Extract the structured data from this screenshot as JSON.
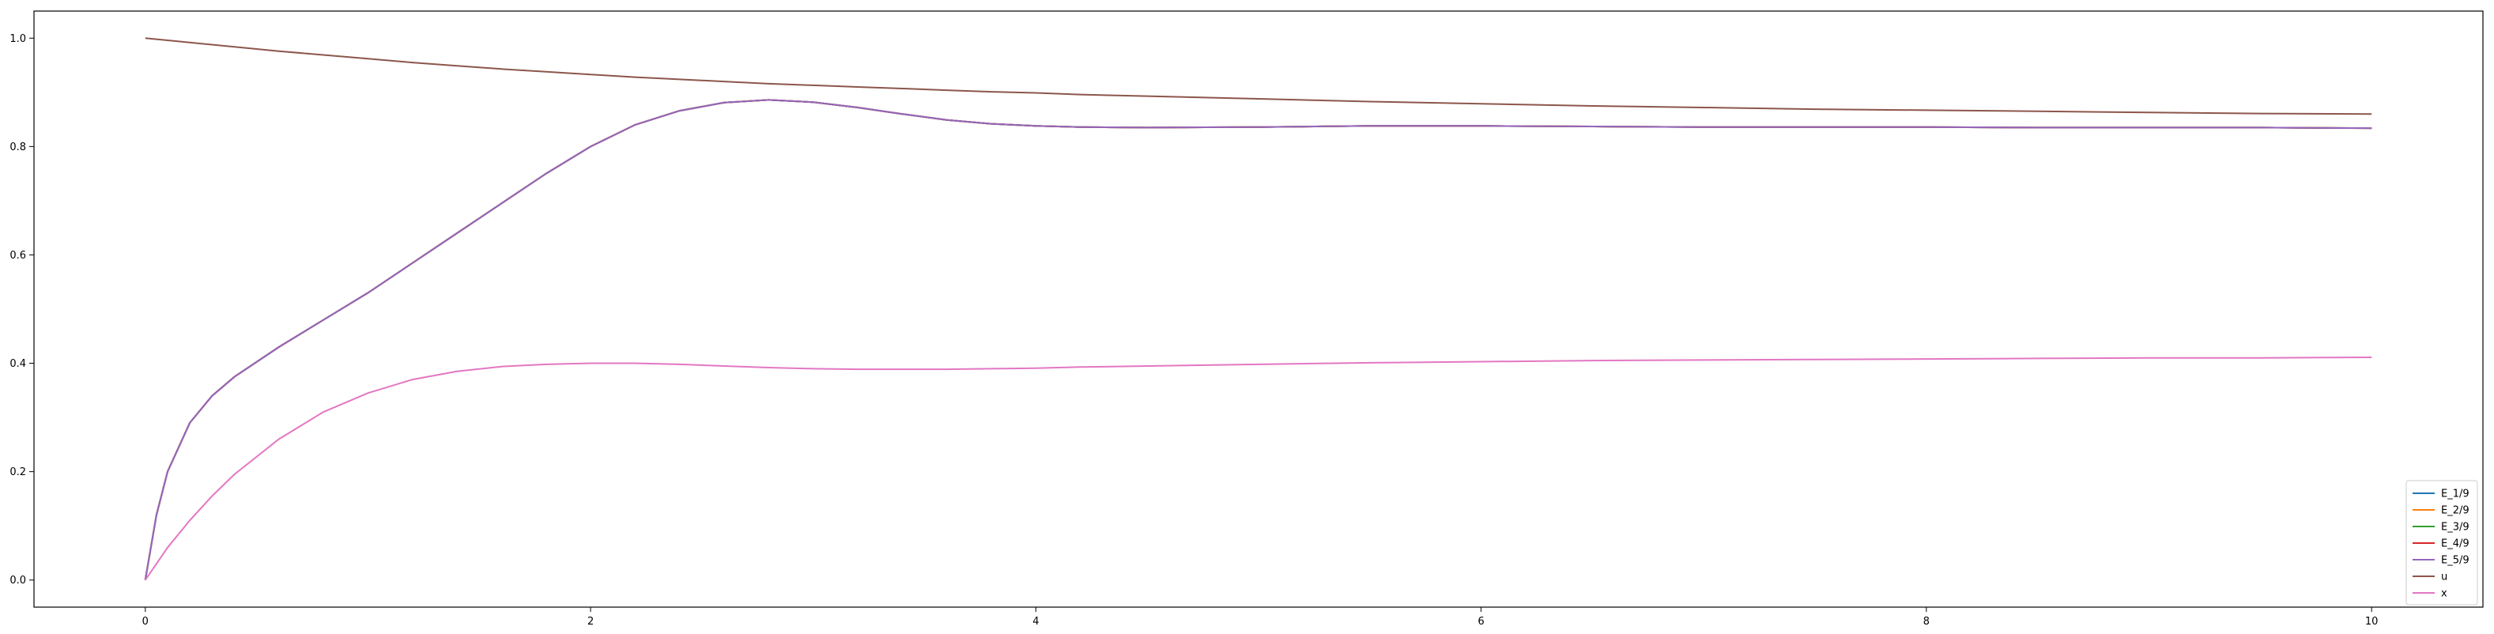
{
  "chart_data": {
    "type": "line",
    "title": "",
    "xlabel": "",
    "ylabel": "",
    "xlim": [
      -0.5,
      10.5
    ],
    "ylim": [
      -0.05,
      1.05
    ],
    "xticks": [
      0,
      2,
      4,
      6,
      8,
      10
    ],
    "yticks": [
      0.0,
      0.2,
      0.4,
      0.6,
      0.8,
      1.0
    ],
    "xtick_labels": [
      "0",
      "2",
      "4",
      "6",
      "8",
      "10"
    ],
    "ytick_labels": [
      "0.0",
      "0.2",
      "0.4",
      "0.6",
      "0.8",
      "1.0"
    ],
    "grid": false,
    "legend_position": "bottom-right",
    "x": [
      0,
      0.05,
      0.1,
      0.2,
      0.3,
      0.4,
      0.6,
      0.8,
      1.0,
      1.2,
      1.4,
      1.6,
      1.8,
      2.0,
      2.2,
      2.4,
      2.6,
      2.8,
      3.0,
      3.2,
      3.4,
      3.6,
      3.8,
      4.0,
      4.2,
      4.5,
      5.0,
      5.5,
      6.0,
      6.5,
      7.0,
      7.5,
      8.0,
      8.5,
      9.0,
      9.5,
      10.0
    ],
    "series": [
      {
        "name": "E_1/9",
        "color": "#1f77b4",
        "values": [
          0.0,
          0.12,
          0.2,
          0.29,
          0.34,
          0.375,
          0.43,
          0.48,
          0.53,
          0.585,
          0.64,
          0.695,
          0.75,
          0.8,
          0.84,
          0.866,
          0.881,
          0.886,
          0.882,
          0.872,
          0.86,
          0.849,
          0.842,
          0.838,
          0.836,
          0.835,
          0.836,
          0.838,
          0.838,
          0.837,
          0.836,
          0.836,
          0.836,
          0.835,
          0.835,
          0.835,
          0.834
        ]
      },
      {
        "name": "E_2/9",
        "color": "#ff7f0e",
        "values": [
          0.0,
          0.12,
          0.2,
          0.29,
          0.34,
          0.375,
          0.43,
          0.48,
          0.53,
          0.585,
          0.64,
          0.695,
          0.75,
          0.8,
          0.84,
          0.866,
          0.881,
          0.886,
          0.882,
          0.872,
          0.86,
          0.849,
          0.842,
          0.838,
          0.836,
          0.835,
          0.836,
          0.838,
          0.838,
          0.837,
          0.836,
          0.836,
          0.836,
          0.835,
          0.835,
          0.835,
          0.834
        ]
      },
      {
        "name": "E_3/9",
        "color": "#2ca02c",
        "values": [
          0.0,
          0.12,
          0.2,
          0.29,
          0.34,
          0.375,
          0.43,
          0.48,
          0.53,
          0.585,
          0.64,
          0.695,
          0.75,
          0.8,
          0.84,
          0.866,
          0.881,
          0.886,
          0.882,
          0.872,
          0.86,
          0.849,
          0.842,
          0.838,
          0.836,
          0.835,
          0.836,
          0.838,
          0.838,
          0.837,
          0.836,
          0.836,
          0.836,
          0.835,
          0.835,
          0.835,
          0.834
        ]
      },
      {
        "name": "E_4/9",
        "color": "#d62728",
        "values": [
          0.0,
          0.12,
          0.2,
          0.29,
          0.34,
          0.375,
          0.43,
          0.48,
          0.53,
          0.585,
          0.64,
          0.695,
          0.75,
          0.8,
          0.84,
          0.866,
          0.881,
          0.886,
          0.882,
          0.872,
          0.86,
          0.849,
          0.842,
          0.838,
          0.836,
          0.835,
          0.836,
          0.838,
          0.838,
          0.837,
          0.836,
          0.836,
          0.836,
          0.835,
          0.835,
          0.835,
          0.834
        ]
      },
      {
        "name": "E_5/9",
        "color": "#9467bd",
        "values": [
          0.0,
          0.12,
          0.2,
          0.29,
          0.34,
          0.375,
          0.43,
          0.48,
          0.53,
          0.585,
          0.64,
          0.695,
          0.75,
          0.8,
          0.84,
          0.866,
          0.881,
          0.886,
          0.882,
          0.872,
          0.86,
          0.849,
          0.842,
          0.838,
          0.836,
          0.835,
          0.836,
          0.838,
          0.838,
          0.837,
          0.836,
          0.836,
          0.836,
          0.835,
          0.835,
          0.835,
          0.834
        ]
      },
      {
        "name": "u",
        "color": "#8c564b",
        "values": [
          1.0,
          0.998,
          0.996,
          0.992,
          0.988,
          0.984,
          0.976,
          0.969,
          0.962,
          0.955,
          0.949,
          0.943,
          0.938,
          0.933,
          0.928,
          0.924,
          0.92,
          0.916,
          0.913,
          0.91,
          0.907,
          0.904,
          0.901,
          0.899,
          0.896,
          0.893,
          0.888,
          0.883,
          0.879,
          0.875,
          0.872,
          0.869,
          0.867,
          0.865,
          0.863,
          0.861,
          0.86
        ]
      },
      {
        "name": "x",
        "color": "#e377c2",
        "values": [
          0.0,
          0.03,
          0.06,
          0.11,
          0.155,
          0.195,
          0.26,
          0.31,
          0.345,
          0.37,
          0.385,
          0.394,
          0.398,
          0.4,
          0.4,
          0.398,
          0.395,
          0.392,
          0.39,
          0.389,
          0.389,
          0.389,
          0.39,
          0.391,
          0.393,
          0.395,
          0.398,
          0.401,
          0.403,
          0.405,
          0.406,
          0.407,
          0.408,
          0.409,
          0.41,
          0.41,
          0.411
        ]
      }
    ]
  }
}
